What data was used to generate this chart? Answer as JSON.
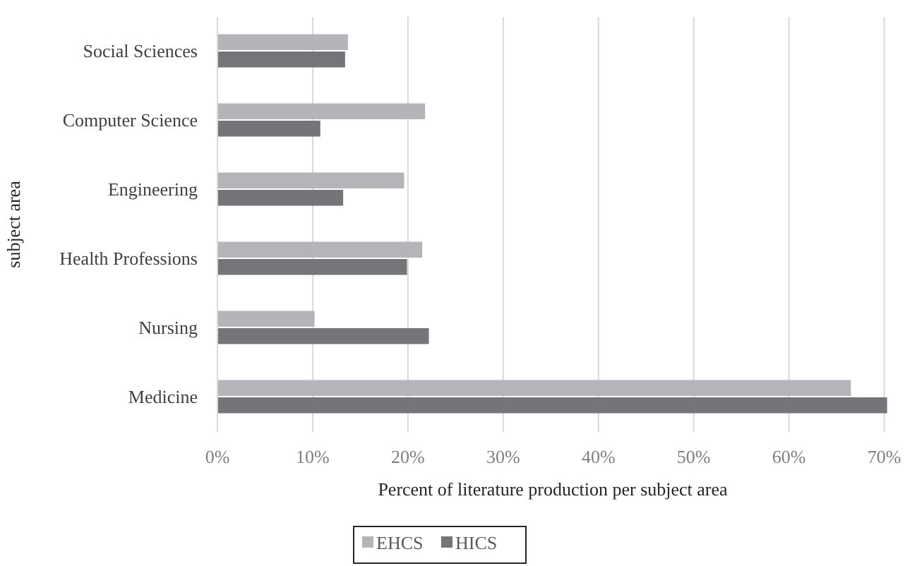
{
  "chart_data": {
    "type": "bar",
    "orientation": "horizontal",
    "xlabel": "Percent of literature production per subject area",
    "ylabel": "subject area",
    "categories": [
      "Social Sciences",
      "Computer Science",
      "Engineering",
      "Health Professions",
      "Nursing",
      "Medicine"
    ],
    "series": [
      {
        "name": "EHCS",
        "color": "#b4b5b8",
        "values": [
          13.7,
          21.8,
          19.6,
          21.5,
          10.2,
          66.5
        ]
      },
      {
        "name": "HICS",
        "color": "#747578",
        "values": [
          13.4,
          10.8,
          13.2,
          19.9,
          22.2,
          70.3
        ]
      }
    ],
    "xlim": [
      0,
      70.4
    ],
    "xticks": [
      {
        "value": 0,
        "label": "0%"
      },
      {
        "value": 10,
        "label": "10%"
      },
      {
        "value": 20,
        "label": "20%"
      },
      {
        "value": 30,
        "label": "30%"
      },
      {
        "value": 40,
        "label": "40%"
      },
      {
        "value": 50,
        "label": "50%"
      },
      {
        "value": 60,
        "label": "60%"
      },
      {
        "value": 70,
        "label": "70%"
      }
    ],
    "grid": "x",
    "legend": "bottom"
  }
}
